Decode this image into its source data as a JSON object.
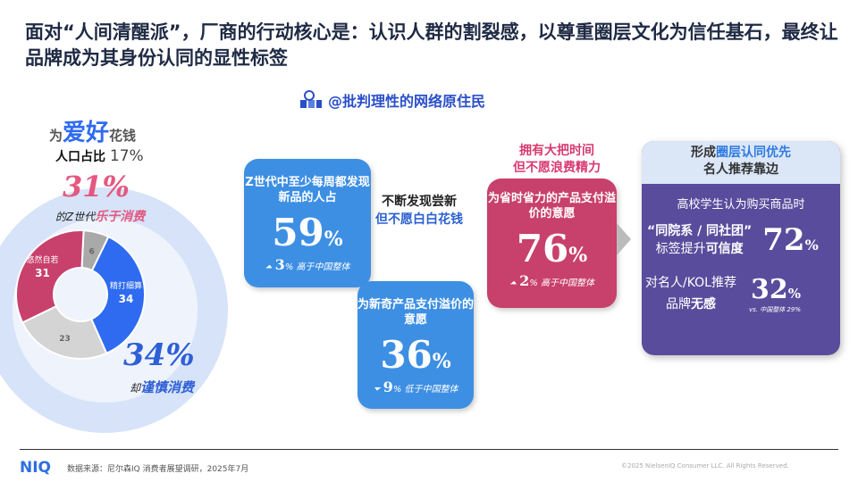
{
  "title": "面对“人间清醒派”，厂商的行动核心是：认识人群的割裂感，以尊重圈层文化为信任基石，最终让品牌成为其身份认同的显性标签",
  "persona": {
    "icon": "people-group-icon",
    "label": "@批判理性的网络原住民"
  },
  "left": {
    "hobby_pre": "为",
    "hobby_em": "爱好",
    "hobby_post": "花钱",
    "pop_label": "人口占比",
    "pop_value": "17%",
    "pct1": "31%",
    "pct1_pre": "的Z世代",
    "pct1_em": "乐于消费",
    "pct2": "34%",
    "pct2_pre": "却",
    "pct2_em": "谨慎消费"
  },
  "donut": {
    "segments": [
      {
        "label": "",
        "value": 6,
        "color": "#a9a9a9"
      },
      {
        "label": "精打细算",
        "value": 34,
        "color": "#2e6bf0"
      },
      {
        "label": "",
        "value": 23,
        "color": "#d4d4d4"
      },
      {
        "label": "悠然自若",
        "value": 31,
        "color": "#c8406c"
      }
    ]
  },
  "box1": {
    "heading": "Z世代中至少每周都发现新品的人占",
    "value": "59",
    "unit": "%",
    "delta_icon": "up-arrow-icon",
    "delta": "3",
    "delta_unit": "%",
    "delta_text": "高于中国整体"
  },
  "mid": {
    "line1": "不断发现尝新",
    "line2": "但不愿白白花钱"
  },
  "box2": {
    "heading": "为新奇产品支付溢价的意愿",
    "value": "36",
    "unit": "%",
    "delta_icon": "down-arrow-icon",
    "delta": "9",
    "delta_unit": "%",
    "delta_text": "低于中国整体"
  },
  "pink_heading": {
    "line1": "拥有大把时间",
    "line2": "但不愿浪费精力"
  },
  "box3": {
    "heading": "为省时省力的产品支付溢价的意愿",
    "value": "76",
    "unit": "%",
    "delta_icon": "up-arrow-icon",
    "delta": "2",
    "delta_unit": "%",
    "delta_text": "高于中国整体"
  },
  "purple": {
    "hd_pre": "形成",
    "hd_em": "圈层认同优先",
    "hd_line2": "名人推荐靠边",
    "intro": "高校学生认为购买商品时",
    "s1_line1": "“同院系 / 同社团”",
    "s1_line2_pre": "标签提升",
    "s1_line2_em": "可信度",
    "s1_value": "72",
    "s2_line1": "对名人/KOL推荐",
    "s2_line2_pre": "品牌",
    "s2_line2_em": "无感",
    "s2_value": "32",
    "unit": "%",
    "vs": "vs. 中国整体 29%"
  },
  "footer": {
    "logo": "NIQ",
    "source": "数据来源：尼尔森IQ 消费者展望调研，2025年7月",
    "copyright": "©2025 NielsenIQ Consumer LLC. All Rights Reserved."
  },
  "colors": {
    "blue": "#3d8fe3",
    "pink": "#c8406c",
    "purple": "#5a4c9c"
  }
}
